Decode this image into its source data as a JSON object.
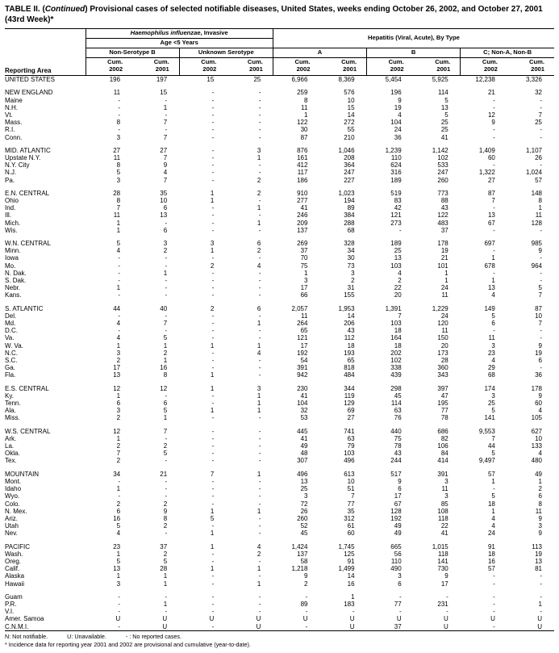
{
  "title": {
    "t1": "TABLE II. (",
    "t2": "Continued",
    "t3": ") Provisional cases of selected notifiable diseases, United States, weeks ending October 26, 2002, and October 27, 2001",
    "t4": "(43rd Week)*"
  },
  "header": {
    "reporting_area": "Reporting Area",
    "haemophilus_italic": "Haemophilus influenzae",
    "haemophilus_rest": ", Invasive",
    "age": "Age <5 Years",
    "hepatitis": "Hepatitis (Viral, Acute), By Type",
    "sub": [
      "Non-Serotype B",
      "Unknown Serotype",
      "A",
      "B",
      "C; Non-A, Non-B"
    ],
    "cum": "Cum.",
    "years": [
      "2002",
      "2001"
    ]
  },
  "groups": [
    {
      "rows": [
        {
          "area": "UNITED STATES",
          "v": [
            "196",
            "197",
            "15",
            "25",
            "6,966",
            "8,369",
            "5,454",
            "5,925",
            "12,238",
            "3,326"
          ]
        }
      ]
    },
    {
      "rows": [
        {
          "area": "NEW ENGLAND",
          "v": [
            "11",
            "15",
            "-",
            "-",
            "259",
            "576",
            "196",
            "114",
            "21",
            "32"
          ]
        },
        {
          "area": "Maine",
          "v": [
            "-",
            "-",
            "-",
            "-",
            "8",
            "10",
            "9",
            "5",
            "-",
            "-"
          ]
        },
        {
          "area": "N.H.",
          "v": [
            "-",
            "1",
            "-",
            "-",
            "11",
            "15",
            "19",
            "13",
            "-",
            "-"
          ]
        },
        {
          "area": "Vt.",
          "v": [
            "-",
            "-",
            "-",
            "-",
            "1",
            "14",
            "4",
            "5",
            "12",
            "7"
          ]
        },
        {
          "area": "Mass.",
          "v": [
            "8",
            "7",
            "-",
            "-",
            "122",
            "272",
            "104",
            "25",
            "9",
            "25"
          ]
        },
        {
          "area": "R.I.",
          "v": [
            "-",
            "-",
            "-",
            "-",
            "30",
            "55",
            "24",
            "25",
            "-",
            "-"
          ]
        },
        {
          "area": "Conn.",
          "v": [
            "3",
            "7",
            "-",
            "-",
            "87",
            "210",
            "36",
            "41",
            "-",
            "-"
          ]
        }
      ]
    },
    {
      "rows": [
        {
          "area": "MID. ATLANTIC",
          "v": [
            "27",
            "27",
            "-",
            "3",
            "876",
            "1,046",
            "1,239",
            "1,142",
            "1,409",
            "1,107"
          ]
        },
        {
          "area": "Upstate N.Y.",
          "v": [
            "11",
            "7",
            "-",
            "1",
            "161",
            "208",
            "110",
            "102",
            "60",
            "26"
          ]
        },
        {
          "area": "N.Y. City",
          "v": [
            "8",
            "9",
            "-",
            "-",
            "412",
            "364",
            "624",
            "533",
            "-",
            "-"
          ]
        },
        {
          "area": "N.J.",
          "v": [
            "5",
            "4",
            "-",
            "-",
            "117",
            "247",
            "316",
            "247",
            "1,322",
            "1,024"
          ]
        },
        {
          "area": "Pa.",
          "v": [
            "3",
            "7",
            "-",
            "2",
            "186",
            "227",
            "189",
            "260",
            "27",
            "57"
          ]
        }
      ]
    },
    {
      "rows": [
        {
          "area": "E.N. CENTRAL",
          "v": [
            "28",
            "35",
            "1",
            "2",
            "910",
            "1,023",
            "519",
            "773",
            "87",
            "148"
          ]
        },
        {
          "area": "Ohio",
          "v": [
            "8",
            "10",
            "1",
            "-",
            "277",
            "194",
            "83",
            "88",
            "7",
            "8"
          ]
        },
        {
          "area": "Ind.",
          "v": [
            "7",
            "6",
            "-",
            "1",
            "41",
            "89",
            "42",
            "43",
            "-",
            "1"
          ]
        },
        {
          "area": "Ill.",
          "v": [
            "11",
            "13",
            "-",
            "-",
            "246",
            "384",
            "121",
            "122",
            "13",
            "11"
          ]
        },
        {
          "area": "Mich.",
          "v": [
            "1",
            "-",
            "-",
            "1",
            "209",
            "288",
            "273",
            "483",
            "67",
            "128"
          ]
        },
        {
          "area": "Wis.",
          "v": [
            "1",
            "6",
            "-",
            "-",
            "137",
            "68",
            "-",
            "37",
            "-",
            "-"
          ]
        }
      ]
    },
    {
      "rows": [
        {
          "area": "W.N. CENTRAL",
          "v": [
            "5",
            "3",
            "3",
            "6",
            "269",
            "328",
            "189",
            "178",
            "697",
            "985"
          ]
        },
        {
          "area": "Minn.",
          "v": [
            "4",
            "2",
            "1",
            "2",
            "37",
            "34",
            "25",
            "19",
            "-",
            "9"
          ]
        },
        {
          "area": "Iowa",
          "v": [
            "-",
            "-",
            "-",
            "-",
            "70",
            "30",
            "13",
            "21",
            "1",
            "-"
          ]
        },
        {
          "area": "Mo.",
          "v": [
            "-",
            "-",
            "2",
            "4",
            "75",
            "73",
            "103",
            "101",
            "678",
            "964"
          ]
        },
        {
          "area": "N. Dak.",
          "v": [
            "-",
            "1",
            "-",
            "-",
            "1",
            "3",
            "4",
            "1",
            "-",
            "-"
          ]
        },
        {
          "area": "S. Dak.",
          "v": [
            "-",
            "-",
            "-",
            "-",
            "3",
            "2",
            "2",
            "1",
            "1",
            "-"
          ]
        },
        {
          "area": "Nebr.",
          "v": [
            "1",
            "-",
            "-",
            "-",
            "17",
            "31",
            "22",
            "24",
            "13",
            "5"
          ]
        },
        {
          "area": "Kans.",
          "v": [
            "-",
            "-",
            "-",
            "-",
            "66",
            "155",
            "20",
            "11",
            "4",
            "7"
          ]
        }
      ]
    },
    {
      "rows": [
        {
          "area": "S. ATLANTIC",
          "v": [
            "44",
            "40",
            "2",
            "6",
            "2,057",
            "1,953",
            "1,391",
            "1,229",
            "149",
            "87"
          ]
        },
        {
          "area": "Del.",
          "v": [
            "-",
            "-",
            "-",
            "-",
            "11",
            "14",
            "7",
            "24",
            "5",
            "10"
          ]
        },
        {
          "area": "Md.",
          "v": [
            "4",
            "7",
            "-",
            "1",
            "264",
            "206",
            "103",
            "120",
            "6",
            "7"
          ]
        },
        {
          "area": "D.C.",
          "v": [
            "-",
            "-",
            "-",
            "-",
            "65",
            "43",
            "18",
            "11",
            "-",
            "-"
          ]
        },
        {
          "area": "Va.",
          "v": [
            "4",
            "5",
            "-",
            "-",
            "121",
            "112",
            "164",
            "150",
            "11",
            "-"
          ]
        },
        {
          "area": "W. Va.",
          "v": [
            "1",
            "1",
            "1",
            "1",
            "17",
            "18",
            "18",
            "20",
            "3",
            "9"
          ]
        },
        {
          "area": "N.C.",
          "v": [
            "3",
            "2",
            "-",
            "4",
            "192",
            "193",
            "202",
            "173",
            "23",
            "19"
          ]
        },
        {
          "area": "S.C.",
          "v": [
            "2",
            "1",
            "-",
            "-",
            "54",
            "65",
            "102",
            "28",
            "4",
            "6"
          ]
        },
        {
          "area": "Ga.",
          "v": [
            "17",
            "16",
            "-",
            "-",
            "391",
            "818",
            "338",
            "360",
            "29",
            "-"
          ]
        },
        {
          "area": "Fla.",
          "v": [
            "13",
            "8",
            "1",
            "-",
            "942",
            "484",
            "439",
            "343",
            "68",
            "36"
          ]
        }
      ]
    },
    {
      "rows": [
        {
          "area": "E.S. CENTRAL",
          "v": [
            "12",
            "12",
            "1",
            "3",
            "230",
            "344",
            "298",
            "397",
            "174",
            "178"
          ]
        },
        {
          "area": "Ky.",
          "v": [
            "1",
            "-",
            "-",
            "1",
            "41",
            "119",
            "45",
            "47",
            "3",
            "9"
          ]
        },
        {
          "area": "Tenn.",
          "v": [
            "6",
            "6",
            "-",
            "1",
            "104",
            "129",
            "114",
            "195",
            "25",
            "60"
          ]
        },
        {
          "area": "Ala.",
          "v": [
            "3",
            "5",
            "1",
            "1",
            "32",
            "69",
            "63",
            "77",
            "5",
            "4"
          ]
        },
        {
          "area": "Miss.",
          "v": [
            "2",
            "1",
            "-",
            "-",
            "53",
            "27",
            "76",
            "78",
            "141",
            "105"
          ]
        }
      ]
    },
    {
      "rows": [
        {
          "area": "W.S. CENTRAL",
          "v": [
            "12",
            "7",
            "-",
            "-",
            "445",
            "741",
            "440",
            "686",
            "9,553",
            "627"
          ]
        },
        {
          "area": "Ark.",
          "v": [
            "1",
            "-",
            "-",
            "-",
            "41",
            "63",
            "75",
            "82",
            "7",
            "10"
          ]
        },
        {
          "area": "La.",
          "v": [
            "2",
            "2",
            "-",
            "-",
            "49",
            "79",
            "78",
            "106",
            "44",
            "133"
          ]
        },
        {
          "area": "Okla.",
          "v": [
            "7",
            "5",
            "-",
            "-",
            "48",
            "103",
            "43",
            "84",
            "5",
            "4"
          ]
        },
        {
          "area": "Tex.",
          "v": [
            "2",
            "-",
            "-",
            "-",
            "307",
            "496",
            "244",
            "414",
            "9,497",
            "480"
          ]
        }
      ]
    },
    {
      "rows": [
        {
          "area": "MOUNTAIN",
          "v": [
            "34",
            "21",
            "7",
            "1",
            "496",
            "613",
            "517",
            "391",
            "57",
            "49"
          ]
        },
        {
          "area": "Mont.",
          "v": [
            "-",
            "-",
            "-",
            "-",
            "13",
            "10",
            "9",
            "3",
            "1",
            "1"
          ]
        },
        {
          "area": "Idaho",
          "v": [
            "1",
            "-",
            "-",
            "-",
            "25",
            "51",
            "6",
            "11",
            "-",
            "2"
          ]
        },
        {
          "area": "Wyo.",
          "v": [
            "-",
            "-",
            "-",
            "-",
            "3",
            "7",
            "17",
            "3",
            "5",
            "6"
          ]
        },
        {
          "area": "Colo.",
          "v": [
            "2",
            "2",
            "-",
            "-",
            "72",
            "77",
            "67",
            "85",
            "18",
            "8"
          ]
        },
        {
          "area": "N. Mex.",
          "v": [
            "6",
            "9",
            "1",
            "1",
            "26",
            "35",
            "128",
            "108",
            "1",
            "11"
          ]
        },
        {
          "area": "Ariz.",
          "v": [
            "16",
            "8",
            "5",
            "-",
            "260",
            "312",
            "192",
            "118",
            "4",
            "9"
          ]
        },
        {
          "area": "Utah",
          "v": [
            "5",
            "2",
            "-",
            "-",
            "52",
            "61",
            "49",
            "22",
            "4",
            "3"
          ]
        },
        {
          "area": "Nev.",
          "v": [
            "4",
            "-",
            "1",
            "-",
            "45",
            "60",
            "49",
            "41",
            "24",
            "9"
          ]
        }
      ]
    },
    {
      "rows": [
        {
          "area": "PACIFIC",
          "v": [
            "23",
            "37",
            "1",
            "4",
            "1,424",
            "1,745",
            "665",
            "1,015",
            "91",
            "113"
          ]
        },
        {
          "area": "Wash.",
          "v": [
            "1",
            "2",
            "-",
            "2",
            "137",
            "125",
            "56",
            "118",
            "18",
            "19"
          ]
        },
        {
          "area": "Oreg.",
          "v": [
            "5",
            "5",
            "-",
            "-",
            "58",
            "91",
            "110",
            "141",
            "16",
            "13"
          ]
        },
        {
          "area": "Calif.",
          "v": [
            "13",
            "28",
            "1",
            "1",
            "1,218",
            "1,499",
            "490",
            "730",
            "57",
            "81"
          ]
        },
        {
          "area": "Alaska",
          "v": [
            "1",
            "1",
            "-",
            "-",
            "9",
            "14",
            "3",
            "9",
            "-",
            "-"
          ]
        },
        {
          "area": "Hawaii",
          "v": [
            "3",
            "1",
            "-",
            "1",
            "2",
            "16",
            "6",
            "17",
            "-",
            "-"
          ]
        }
      ]
    },
    {
      "rows": [
        {
          "area": "Guam",
          "v": [
            "-",
            "-",
            "-",
            "-",
            "-",
            "1",
            "-",
            "-",
            "-",
            "-"
          ]
        },
        {
          "area": "P.R.",
          "v": [
            "-",
            "1",
            "-",
            "-",
            "89",
            "183",
            "77",
            "231",
            "-",
            "1"
          ]
        },
        {
          "area": "V.I.",
          "v": [
            "-",
            "-",
            "-",
            "-",
            "-",
            "-",
            "-",
            "-",
            "-",
            "-"
          ]
        },
        {
          "area": "Amer. Samoa",
          "v": [
            "U",
            "U",
            "U",
            "U",
            "U",
            "U",
            "U",
            "U",
            "U",
            "U"
          ]
        },
        {
          "area": "C.N.M.I.",
          "v": [
            "-",
            "U",
            "-",
            "U",
            "-",
            "U",
            "37",
            "U",
            "-",
            "U"
          ]
        }
      ]
    }
  ],
  "footnotes": {
    "n": "N: Not notifiable.",
    "u": "U: Unavailable.",
    "dash": "- : No reported cases.",
    "star": "* Incidence data for reporting year 2001 and 2002 are provisional and cumulative (year-to-date)."
  }
}
